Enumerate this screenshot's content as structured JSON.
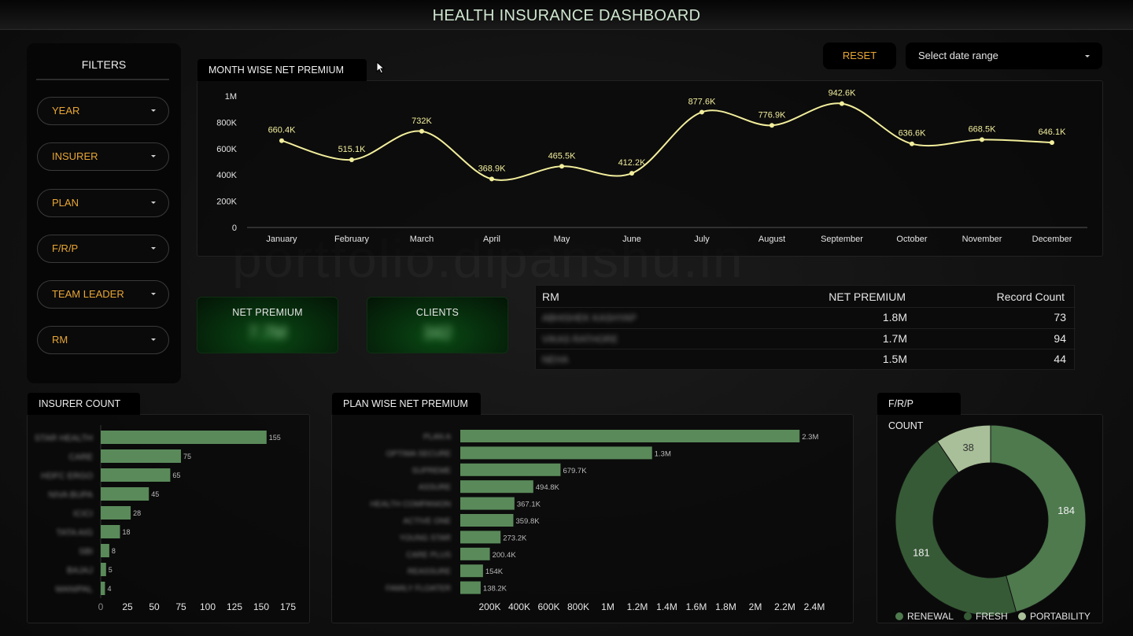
{
  "header": {
    "title": "HEALTH INSURANCE DASHBOARD"
  },
  "filters": {
    "title": "FILTERS",
    "items": [
      "YEAR",
      "INSURER",
      "PLAN",
      "F/R/P",
      "TEAM LEADER",
      "RM"
    ]
  },
  "toolbar": {
    "reset_label": "RESET",
    "date_placeholder": "Select date range"
  },
  "watermark": "portfolio.dipanshu.in",
  "kpis": {
    "net_premium": {
      "label": "NET PREMIUM",
      "value": "7.7M"
    },
    "clients": {
      "label": "CLIENTS",
      "value": "342"
    }
  },
  "rm_table": {
    "headers": [
      "RM",
      "NET PREMIUM",
      "Record Count"
    ],
    "rows": [
      {
        "name": "ABHISHEK KASHYAP",
        "net_premium": "1.8M",
        "count": "73"
      },
      {
        "name": "VIKAS RATHORE",
        "net_premium": "1.7M",
        "count": "94"
      },
      {
        "name": "NEHA",
        "net_premium": "1.5M",
        "count": "44"
      }
    ]
  },
  "colors": {
    "accent": "#e8a635",
    "line": "#f2ee9c",
    "bar": "#5a8a5a",
    "renewal": "#4e7a4e",
    "fresh": "#365a36",
    "portability": "#a9bf99"
  },
  "chart_data": [
    {
      "id": "month_wise",
      "title": "MONTH WISE NET PREMIUM",
      "type": "line",
      "categories": [
        "January",
        "February",
        "March",
        "April",
        "May",
        "June",
        "July",
        "August",
        "September",
        "October",
        "November",
        "December"
      ],
      "values": [
        660400,
        515100,
        732000,
        368900,
        465500,
        412200,
        877600,
        776900,
        942600,
        636600,
        668500,
        646100
      ],
      "labels": [
        "660.4K",
        "515.1K",
        "732K",
        "368.9K",
        "465.5K",
        "412.2K",
        "877.6K",
        "776.9K",
        "942.6K",
        "636.6K",
        "668.5K",
        "646.1K"
      ],
      "yticks": [
        "0",
        "200K",
        "400K",
        "600K",
        "800K",
        "1M"
      ],
      "ylim": [
        0,
        1000000
      ]
    },
    {
      "id": "insurer_count",
      "title": "INSURER COUNT",
      "type": "bar",
      "orientation": "horizontal",
      "categories": [
        "STAR HEALTH",
        "CARE",
        "HDFC ERGO",
        "NIVA BUPA",
        "ICICI",
        "TATA AIG",
        "SBI",
        "BAJAJ",
        "MANIPAL"
      ],
      "values": [
        155,
        75,
        65,
        45,
        28,
        18,
        8,
        5,
        4
      ],
      "xticks": [
        "0",
        "25",
        "50",
        "75",
        "100",
        "125",
        "150",
        "175"
      ],
      "xlim": [
        0,
        175
      ]
    },
    {
      "id": "plan_wise",
      "title": "PLAN WISE NET PREMIUM",
      "type": "bar",
      "orientation": "horizontal",
      "categories": [
        "PLAN A",
        "OPTIMA SECURE",
        "SUPREME",
        "ASSURE",
        "HEALTH COMPANION",
        "ACTIVE ONE",
        "YOUNG STAR",
        "CARE PLUS",
        "REASSURE",
        "FAMILY FLOATER"
      ],
      "values": [
        2300000,
        1300000,
        679700,
        494800,
        367100,
        359800,
        273200,
        200400,
        154000,
        138200
      ],
      "labels": [
        "2.3M",
        "1.3M",
        "679.7K",
        "494.8K",
        "367.1K",
        "359.8K",
        "273.2K",
        "200.4K",
        "154K",
        "138.2K"
      ],
      "xticks": [
        "200K",
        "400K",
        "600K",
        "800K",
        "1M",
        "1.2M",
        "1.4M",
        "1.6M",
        "1.8M",
        "2M",
        "2.2M",
        "2.4M"
      ],
      "xlim": [
        0,
        2500000
      ]
    },
    {
      "id": "frp_count",
      "title": "F/R/P COUNT",
      "type": "pie",
      "categories": [
        "RENEWAL",
        "FRESH",
        "PORTABILITY"
      ],
      "values": [
        184,
        181,
        38
      ]
    }
  ]
}
